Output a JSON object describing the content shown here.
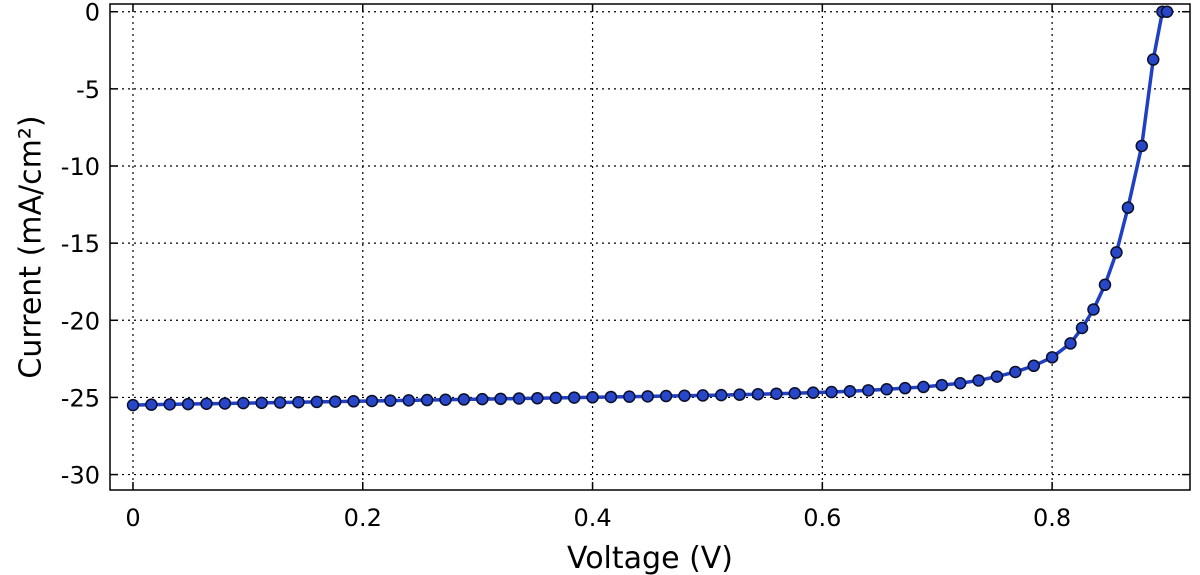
{
  "chart_data": {
    "type": "line",
    "xlabel": "Voltage (V)",
    "ylabel": "Current (mA/cm²)",
    "xlim": [
      -0.02,
      0.92
    ],
    "ylim": [
      -31,
      0.5
    ],
    "xticks": [
      0,
      0.2,
      0.4,
      0.6,
      0.8
    ],
    "xtick_labels": [
      "0",
      "0.2",
      "0.4",
      "0.6",
      "0.8"
    ],
    "yticks": [
      0,
      -5,
      -10,
      -15,
      -20,
      -25,
      -30
    ],
    "ytick_labels": [
      "0",
      "-5",
      "-10",
      "-15",
      "-20",
      "-25",
      "-30"
    ],
    "grid": true,
    "series": [
      {
        "color": "#1f3fc4",
        "marker": "circle",
        "x": [
          0,
          0.016,
          0.032,
          0.048,
          0.064,
          0.08,
          0.096,
          0.112,
          0.128,
          0.144,
          0.16,
          0.176,
          0.192,
          0.208,
          0.224,
          0.24,
          0.256,
          0.272,
          0.288,
          0.304,
          0.32,
          0.336,
          0.352,
          0.368,
          0.384,
          0.4,
          0.416,
          0.432,
          0.448,
          0.464,
          0.48,
          0.496,
          0.512,
          0.528,
          0.544,
          0.56,
          0.576,
          0.592,
          0.608,
          0.624,
          0.64,
          0.656,
          0.672,
          0.688,
          0.704,
          0.72,
          0.736,
          0.752,
          0.768,
          0.784,
          0.8,
          0.816,
          0.826,
          0.836,
          0.846,
          0.856,
          0.866,
          0.878,
          0.888,
          0.896,
          0.9
        ],
        "y": [
          -25.5,
          -25.47,
          -25.45,
          -25.43,
          -25.41,
          -25.39,
          -25.37,
          -25.35,
          -25.33,
          -25.31,
          -25.29,
          -25.27,
          -25.25,
          -25.23,
          -25.21,
          -25.19,
          -25.17,
          -25.15,
          -25.13,
          -25.11,
          -25.09,
          -25.07,
          -25.05,
          -25.03,
          -25.01,
          -24.99,
          -24.97,
          -24.95,
          -24.93,
          -24.91,
          -24.89,
          -24.87,
          -24.85,
          -24.82,
          -24.79,
          -24.76,
          -24.73,
          -24.69,
          -24.65,
          -24.6,
          -24.54,
          -24.47,
          -24.4,
          -24.32,
          -24.2,
          -24.08,
          -23.9,
          -23.65,
          -23.35,
          -22.95,
          -22.4,
          -21.5,
          -20.5,
          -19.3,
          -17.7,
          -15.6,
          -12.7,
          -8.7,
          -3.1,
          0.0,
          0.0
        ]
      }
    ]
  }
}
